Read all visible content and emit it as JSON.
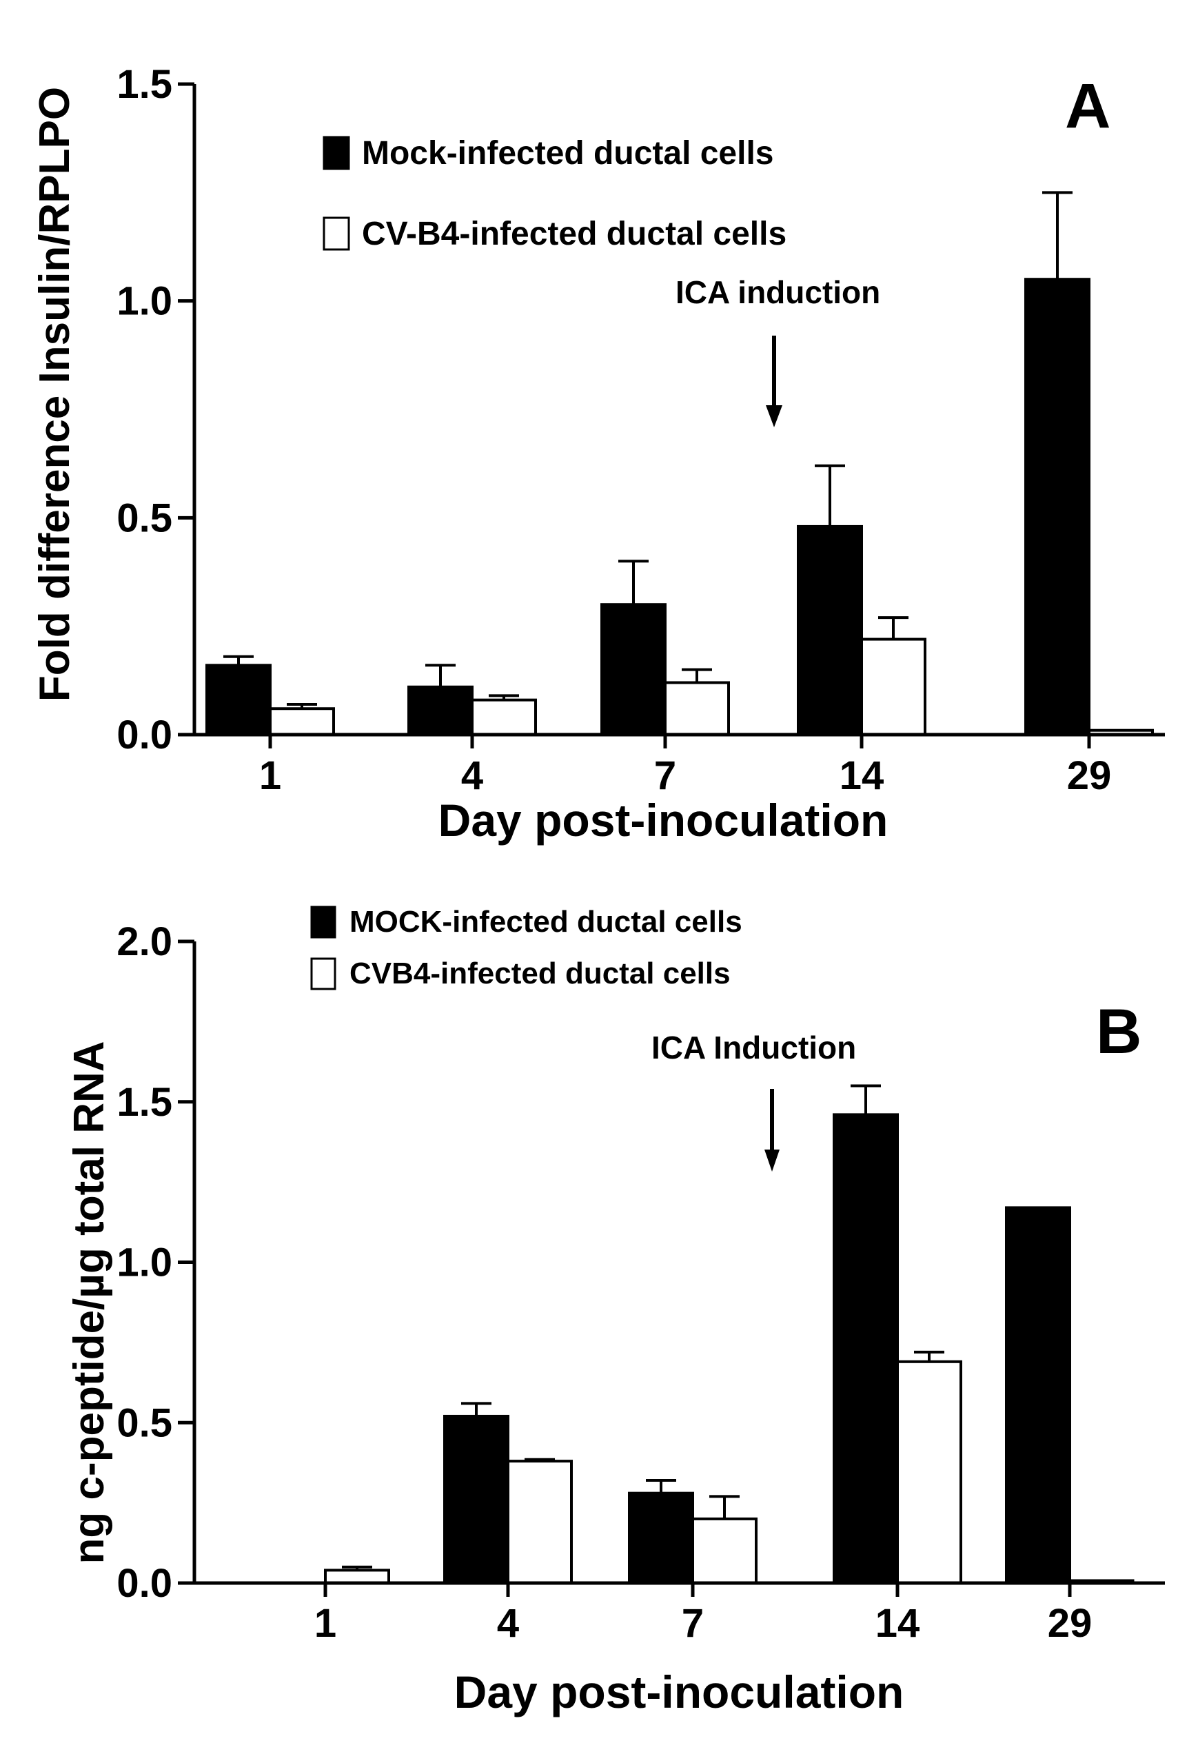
{
  "chart_data": [
    {
      "panel": "A",
      "type": "bar",
      "ylabel": "Fold difference Insulin/RPLPO",
      "xlabel": "Day post-inoculation",
      "categories": [
        "1",
        "4",
        "7",
        "14",
        "29"
      ],
      "ylim": [
        0,
        1.5
      ],
      "yticks": [
        "0.0",
        "0.5",
        "1.0",
        "1.5"
      ],
      "yticks_values": [
        0,
        0.5,
        1.0,
        1.5
      ],
      "legend": [
        "Mock-infected ductal cells",
        "CV-B4-infected ductal cells"
      ],
      "series": [
        {
          "name": "Mock-infected ductal cells",
          "fill": "#000000",
          "values": [
            0.16,
            0.11,
            0.3,
            0.48,
            1.05
          ],
          "errors": [
            0.02,
            0.05,
            0.1,
            0.14,
            0.2
          ]
        },
        {
          "name": "CV-B4-infected ductal cells",
          "fill": "#ffffff",
          "values": [
            0.06,
            0.08,
            0.12,
            0.22,
            0.01
          ],
          "errors": [
            0.01,
            0.01,
            0.03,
            0.05,
            0.0
          ]
        }
      ],
      "annotation": {
        "text": "ICA induction",
        "between": [
          "7",
          "14"
        ]
      }
    },
    {
      "panel": "B",
      "type": "bar",
      "ylabel": "ng c-peptide/µg total RNA",
      "xlabel": "Day post-inoculation",
      "categories": [
        "1",
        "4",
        "7",
        "14",
        "29"
      ],
      "ylim": [
        0,
        2.0
      ],
      "yticks": [
        "0.0",
        "0.5",
        "1.0",
        "1.5",
        "2.0"
      ],
      "yticks_values": [
        0,
        0.5,
        1.0,
        1.5,
        2.0
      ],
      "legend": [
        "MOCK-infected ductal cells",
        "CVB4-infected ductal cells"
      ],
      "series": [
        {
          "name": "MOCK-infected ductal cells",
          "fill": "#000000",
          "values": [
            0.0,
            0.52,
            0.28,
            1.46,
            1.17
          ],
          "errors": [
            0.0,
            0.04,
            0.04,
            0.09,
            0.0
          ]
        },
        {
          "name": "CVB4-infected ductal cells",
          "fill": "#ffffff",
          "values": [
            0.04,
            0.38,
            0.2,
            0.69,
            0.0
          ],
          "errors": [
            0.01,
            0.005,
            0.07,
            0.03,
            0.0
          ]
        }
      ],
      "annotation": {
        "text": "ICA Induction",
        "between": [
          "7",
          "14"
        ]
      }
    }
  ]
}
